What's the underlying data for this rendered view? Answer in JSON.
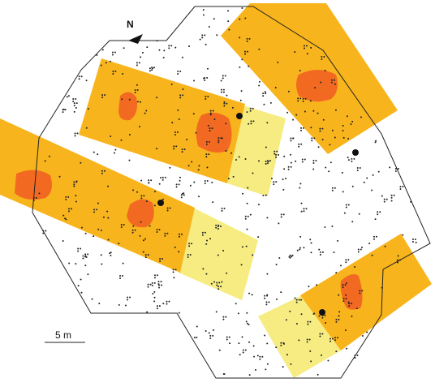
{
  "north_label": "N",
  "scale_label": "5 m"
}
